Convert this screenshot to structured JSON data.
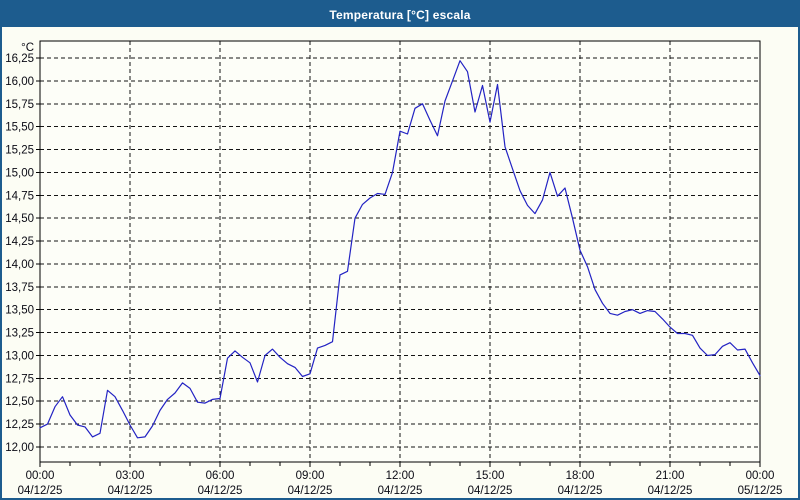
{
  "title_bar": {
    "text": "Temperatura [°C] escala",
    "bg_color": "#1d5c8e",
    "fg_color": "#ffffff"
  },
  "window": {
    "bg_color": "#fcfdf4",
    "border_color": "#1d5c8e"
  },
  "chart_data": {
    "type": "line",
    "title": "Temperatura [°C] escala",
    "xlabel": "",
    "ylabel": "°C",
    "y_unit_label": "°C",
    "ylim": [
      12.0,
      16.25
    ],
    "y_tick_step": 0.25,
    "grid": "dashed",
    "legend_position": "none",
    "line_color": "#2323c3",
    "grid_color": "#141414",
    "axis_color": "#000000",
    "y_ticks": [
      {
        "value": 12.0,
        "label": "12,00"
      },
      {
        "value": 12.25,
        "label": "12,25"
      },
      {
        "value": 12.5,
        "label": "12,50"
      },
      {
        "value": 12.75,
        "label": "12,75"
      },
      {
        "value": 13.0,
        "label": "13,00"
      },
      {
        "value": 13.25,
        "label": "13,25"
      },
      {
        "value": 13.5,
        "label": "13,50"
      },
      {
        "value": 13.75,
        "label": "13,75"
      },
      {
        "value": 14.0,
        "label": "14,00"
      },
      {
        "value": 14.25,
        "label": "14,25"
      },
      {
        "value": 14.5,
        "label": "14,50"
      },
      {
        "value": 14.75,
        "label": "14,75"
      },
      {
        "value": 15.0,
        "label": "15,00"
      },
      {
        "value": 15.25,
        "label": "15,25"
      },
      {
        "value": 15.5,
        "label": "15,50"
      },
      {
        "value": 15.75,
        "label": "15,75"
      },
      {
        "value": 16.0,
        "label": "16,00"
      },
      {
        "value": 16.25,
        "label": "16,25"
      }
    ],
    "x_ticks": [
      {
        "hour": 0,
        "time": "00:00",
        "date": "04/12/25"
      },
      {
        "hour": 3,
        "time": "03:00",
        "date": "04/12/25"
      },
      {
        "hour": 6,
        "time": "06:00",
        "date": "04/12/25"
      },
      {
        "hour": 9,
        "time": "09:00",
        "date": "04/12/25"
      },
      {
        "hour": 12,
        "time": "12:00",
        "date": "04/12/25"
      },
      {
        "hour": 15,
        "time": "15:00",
        "date": "04/12/25"
      },
      {
        "hour": 18,
        "time": "18:00",
        "date": "04/12/25"
      },
      {
        "hour": 21,
        "time": "21:00",
        "date": "04/12/25"
      },
      {
        "hour": 24,
        "time": "00:00",
        "date": "05/12/25"
      }
    ],
    "x_minor_tick_hours": 1,
    "x_range_hours": [
      0,
      24
    ],
    "series": [
      {
        "name": "Temperatura [°C]",
        "x_start_hour": 0,
        "x_step_hours": 0.25,
        "values": [
          12.21,
          12.25,
          12.44,
          12.55,
          12.35,
          12.24,
          12.22,
          12.11,
          12.15,
          12.62,
          12.55,
          12.4,
          12.24,
          12.1,
          12.11,
          12.23,
          12.4,
          12.52,
          12.59,
          12.7,
          12.64,
          12.49,
          12.48,
          12.52,
          12.53,
          12.97,
          13.05,
          12.98,
          12.92,
          12.71,
          13.0,
          13.07,
          12.98,
          12.91,
          12.87,
          12.77,
          12.8,
          13.08,
          13.11,
          13.15,
          13.88,
          13.92,
          14.5,
          14.65,
          14.72,
          14.77,
          14.76,
          15.0,
          15.45,
          15.42,
          15.7,
          15.75,
          15.57,
          15.4,
          15.78,
          16.0,
          16.22,
          16.1,
          15.66,
          15.95,
          15.55,
          15.96,
          15.28,
          15.04,
          14.8,
          14.64,
          14.55,
          14.7,
          15.0,
          14.74,
          14.83,
          14.5,
          14.15,
          13.97,
          13.72,
          13.57,
          13.46,
          13.44,
          13.48,
          13.5,
          13.46,
          13.49,
          13.48,
          13.4,
          13.31,
          13.24,
          13.24,
          13.22,
          13.08,
          13.0,
          13.01,
          13.1,
          13.14,
          13.06,
          13.07,
          12.92,
          12.78
        ]
      }
    ]
  }
}
